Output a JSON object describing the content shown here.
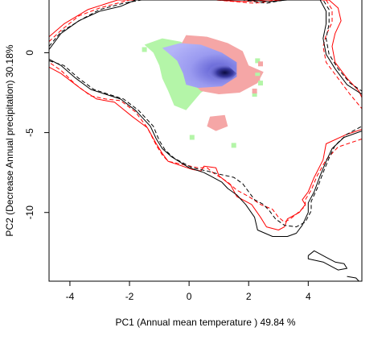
{
  "chart_data": {
    "type": "scatter",
    "title": "",
    "xlabel": "PC1 (Annual mean temperature ) 49.84 %",
    "ylabel": "PC2 (Decrease Annual precipitation) 30.18%",
    "xlim": [
      -4.7,
      5.8
    ],
    "ylim": [
      -14.3,
      3.3
    ],
    "x_ticks": [
      -4,
      -2,
      0,
      2,
      4
    ],
    "y_ticks": [
      0,
      -5,
      -10
    ],
    "x_tick_labels": [
      "-4",
      "-2",
      "0",
      "2",
      "4"
    ],
    "y_tick_labels": [
      "0",
      "-5",
      "-10"
    ],
    "grid": false,
    "legend": "none",
    "colors": {
      "species_a_envelope": "#ff0000",
      "species_b_envelope": "#000000",
      "overlap_density_high": "#0a0a40",
      "overlap": "#a0a0f5",
      "species_a_only": "#f5a6a6",
      "species_b_only": "#b4f5a8"
    },
    "series": [
      {
        "style": "red-solid",
        "points": [
          [
            -4.7,
            1.0
          ],
          [
            -4.2,
            1.8
          ],
          [
            -3.4,
            2.7
          ],
          [
            -2.4,
            3.3
          ],
          [
            0.9,
            3.3
          ],
          [
            1.8,
            3.2
          ],
          [
            2.6,
            3.3
          ],
          [
            4.7,
            3.3
          ],
          [
            5.0,
            2.8
          ],
          [
            5.1,
            2.0
          ],
          [
            4.9,
            1.2
          ],
          [
            4.8,
            0.4
          ],
          [
            4.9,
            -0.6
          ],
          [
            5.3,
            -1.6
          ],
          [
            5.7,
            -2.4
          ],
          [
            5.8,
            -2.8
          ],
          [
            5.8,
            -4.8
          ],
          [
            5.3,
            -5.1
          ],
          [
            4.6,
            -5.7
          ],
          [
            4.5,
            -6.7
          ],
          [
            4.2,
            -7.8
          ],
          [
            4.0,
            -8.7
          ],
          [
            3.8,
            -9.2
          ],
          [
            3.9,
            -9.5
          ],
          [
            3.7,
            -10.0
          ],
          [
            3.3,
            -10.4
          ],
          [
            3.2,
            -10.9
          ],
          [
            3.0,
            -11.1
          ],
          [
            2.6,
            -10.9
          ],
          [
            2.4,
            -10.3
          ],
          [
            2.1,
            -9.5
          ],
          [
            1.6,
            -9.0
          ],
          [
            1.4,
            -8.3
          ],
          [
            1.0,
            -7.7
          ],
          [
            0.9,
            -7.2
          ],
          [
            0.5,
            -7.1
          ],
          [
            0.4,
            -7.4
          ],
          [
            0.1,
            -7.3
          ],
          [
            -0.7,
            -6.8
          ],
          [
            -0.9,
            -6.3
          ],
          [
            -1.1,
            -5.7
          ],
          [
            -1.4,
            -4.7
          ],
          [
            -1.9,
            -4.0
          ],
          [
            -2.5,
            -3.1
          ],
          [
            -3.1,
            -2.9
          ],
          [
            -3.6,
            -2.3
          ],
          [
            -4.3,
            -1.3
          ],
          [
            -4.7,
            -0.9
          ]
        ]
      },
      {
        "style": "red-dashed",
        "points": [
          [
            -4.7,
            0.7
          ],
          [
            -4.3,
            1.4
          ],
          [
            -3.7,
            2.3
          ],
          [
            -3.0,
            2.8
          ],
          [
            -2.0,
            3.3
          ],
          [
            0.9,
            3.3
          ],
          [
            2.2,
            3.1
          ],
          [
            3.0,
            3.3
          ],
          [
            4.6,
            3.3
          ],
          [
            4.8,
            2.7
          ],
          [
            4.8,
            1.9
          ],
          [
            4.6,
            1.1
          ],
          [
            4.5,
            0.4
          ],
          [
            4.6,
            -0.6
          ],
          [
            5.0,
            -1.6
          ],
          [
            5.4,
            -2.6
          ],
          [
            5.8,
            -3.5
          ],
          [
            5.8,
            -5.4
          ],
          [
            5.0,
            -5.9
          ],
          [
            4.6,
            -6.7
          ],
          [
            4.3,
            -7.7
          ],
          [
            4.1,
            -8.6
          ],
          [
            3.9,
            -9.2
          ],
          [
            3.9,
            -9.6
          ],
          [
            3.6,
            -10.1
          ],
          [
            3.4,
            -10.4
          ],
          [
            3.2,
            -10.6
          ],
          [
            3.0,
            -10.3
          ],
          [
            2.8,
            -9.8
          ],
          [
            2.4,
            -9.5
          ],
          [
            2.0,
            -9.0
          ],
          [
            1.6,
            -8.6
          ],
          [
            1.3,
            -8.1
          ],
          [
            0.8,
            -7.5
          ],
          [
            0.6,
            -7.2
          ],
          [
            0.3,
            -7.2
          ],
          [
            -0.7,
            -6.8
          ],
          [
            -0.9,
            -6.4
          ],
          [
            -1.1,
            -5.8
          ],
          [
            -1.4,
            -4.7
          ],
          [
            -1.8,
            -3.7
          ],
          [
            -2.3,
            -3.0
          ],
          [
            -2.8,
            -2.9
          ],
          [
            -3.3,
            -2.7
          ],
          [
            -3.8,
            -2.0
          ],
          [
            -4.3,
            -1.1
          ],
          [
            -4.7,
            -0.6
          ]
        ]
      },
      {
        "style": "black-solid",
        "points": [
          [
            -4.7,
            0.2
          ],
          [
            -4.3,
            1.2
          ],
          [
            -3.7,
            2.0
          ],
          [
            -3.0,
            2.6
          ],
          [
            -2.3,
            2.9
          ],
          [
            -1.8,
            3.3
          ],
          [
            2.0,
            3.3
          ],
          [
            2.7,
            3.2
          ],
          [
            3.3,
            3.3
          ],
          [
            4.4,
            3.3
          ],
          [
            4.6,
            2.6
          ],
          [
            4.6,
            1.8
          ],
          [
            4.5,
            0.9
          ],
          [
            4.6,
            -0.1
          ],
          [
            4.9,
            -1.0
          ],
          [
            5.3,
            -2.0
          ],
          [
            5.8,
            -2.6
          ],
          [
            5.8,
            -4.9
          ],
          [
            5.2,
            -5.3
          ],
          [
            4.8,
            -6.0
          ],
          [
            4.6,
            -6.8
          ],
          [
            4.4,
            -7.7
          ],
          [
            4.2,
            -8.7
          ],
          [
            4.0,
            -9.4
          ],
          [
            4.0,
            -10.0
          ],
          [
            3.8,
            -10.8
          ],
          [
            3.6,
            -11.3
          ],
          [
            3.3,
            -11.5
          ],
          [
            2.8,
            -11.5
          ],
          [
            2.3,
            -11.1
          ],
          [
            2.2,
            -10.3
          ],
          [
            1.9,
            -9.5
          ],
          [
            1.6,
            -8.9
          ],
          [
            1.3,
            -8.5
          ],
          [
            1.1,
            -8.1
          ],
          [
            0.7,
            -7.7
          ],
          [
            0.5,
            -7.5
          ],
          [
            0.0,
            -7.2
          ],
          [
            -0.6,
            -6.5
          ],
          [
            -0.9,
            -6.0
          ],
          [
            -1.1,
            -5.4
          ],
          [
            -1.3,
            -4.6
          ],
          [
            -1.8,
            -3.6
          ],
          [
            -2.3,
            -2.9
          ],
          [
            -2.8,
            -2.6
          ],
          [
            -3.3,
            -2.3
          ],
          [
            -3.8,
            -1.6
          ],
          [
            -4.3,
            -0.8
          ],
          [
            -4.7,
            -0.4
          ]
        ]
      },
      {
        "style": "black-dashed",
        "points": [
          [
            -4.7,
            0.4
          ],
          [
            -4.3,
            1.3
          ],
          [
            -3.6,
            2.1
          ],
          [
            -3.0,
            2.7
          ],
          [
            -2.2,
            3.1
          ],
          [
            -1.6,
            3.3
          ],
          [
            1.8,
            3.3
          ],
          [
            2.6,
            3.1
          ],
          [
            3.2,
            3.3
          ],
          [
            4.5,
            3.3
          ],
          [
            4.7,
            2.7
          ],
          [
            4.7,
            1.8
          ],
          [
            4.6,
            0.9
          ],
          [
            4.7,
            -0.1
          ],
          [
            5.0,
            -1.0
          ],
          [
            5.4,
            -1.9
          ],
          [
            5.8,
            -2.4
          ],
          [
            5.8,
            -4.6
          ],
          [
            5.3,
            -5.1
          ],
          [
            4.9,
            -5.8
          ],
          [
            4.7,
            -6.6
          ],
          [
            4.5,
            -7.5
          ],
          [
            4.3,
            -8.5
          ],
          [
            4.1,
            -9.3
          ],
          [
            4.1,
            -9.9
          ],
          [
            3.9,
            -10.6
          ],
          [
            3.6,
            -10.9
          ],
          [
            3.2,
            -10.8
          ],
          [
            2.9,
            -10.4
          ],
          [
            2.7,
            -9.9
          ],
          [
            2.5,
            -9.5
          ],
          [
            2.2,
            -9.2
          ],
          [
            2.0,
            -8.7
          ],
          [
            1.8,
            -8.2
          ],
          [
            1.5,
            -7.8
          ],
          [
            1.0,
            -7.6
          ],
          [
            0.6,
            -7.4
          ],
          [
            0.1,
            -7.2
          ],
          [
            -0.5,
            -6.6
          ],
          [
            -0.8,
            -6.1
          ],
          [
            -1.0,
            -5.5
          ],
          [
            -1.2,
            -4.6
          ],
          [
            -1.7,
            -3.6
          ],
          [
            -2.2,
            -2.9
          ],
          [
            -2.7,
            -2.6
          ],
          [
            -3.2,
            -2.3
          ],
          [
            -3.7,
            -1.6
          ],
          [
            -4.2,
            -0.8
          ],
          [
            -4.7,
            -0.5
          ]
        ]
      },
      {
        "style": "black-solid",
        "points": [
          [
            4.0,
            -12.7
          ],
          [
            4.2,
            -12.4
          ],
          [
            4.6,
            -12.8
          ],
          [
            4.9,
            -13.1
          ],
          [
            5.2,
            -13.2
          ],
          [
            5.3,
            -13.5
          ],
          [
            5.0,
            -13.6
          ],
          [
            4.5,
            -13.1
          ],
          [
            4.0,
            -12.9
          ],
          [
            4.0,
            -12.7
          ]
        ]
      },
      {
        "style": "black-solid",
        "points": [
          [
            5.3,
            -14.0
          ],
          [
            5.6,
            -14.1
          ],
          [
            5.7,
            -14.3
          ]
        ]
      }
    ],
    "density_regions": [
      {
        "fill": "species_b_only",
        "points": [
          [
            -1.5,
            0.5
          ],
          [
            -0.9,
            0.9
          ],
          [
            -0.3,
            0.7
          ],
          [
            0.4,
            0.2
          ],
          [
            0.9,
            -0.4
          ],
          [
            1.2,
            -1.3
          ],
          [
            0.9,
            -1.9
          ],
          [
            0.4,
            -2.5
          ],
          [
            -0.1,
            -3.6
          ],
          [
            -0.5,
            -3.3
          ],
          [
            -0.7,
            -2.4
          ],
          [
            -0.9,
            -1.6
          ],
          [
            -1.0,
            -0.8
          ],
          [
            -1.2,
            0.0
          ],
          [
            -1.5,
            0.5
          ]
        ]
      },
      {
        "fill": "species_a_only",
        "points": [
          [
            -0.1,
            1.1
          ],
          [
            0.6,
            1.0
          ],
          [
            1.3,
            0.6
          ],
          [
            1.8,
            0.1
          ],
          [
            2.0,
            -0.8
          ],
          [
            2.5,
            -1.2
          ],
          [
            2.3,
            -1.9
          ],
          [
            1.7,
            -2.5
          ],
          [
            1.0,
            -2.6
          ],
          [
            0.4,
            -2.4
          ],
          [
            0.0,
            -1.7
          ],
          [
            -0.2,
            -0.6
          ],
          [
            -0.3,
            0.4
          ],
          [
            -0.1,
            1.1
          ]
        ]
      },
      {
        "fill": "species_a_only",
        "points": [
          [
            0.7,
            -4.0
          ],
          [
            1.2,
            -3.9
          ],
          [
            1.3,
            -4.6
          ],
          [
            0.9,
            -4.9
          ],
          [
            0.6,
            -4.6
          ],
          [
            0.7,
            -4.0
          ]
        ]
      },
      {
        "fill": "overlap",
        "points": [
          [
            -0.9,
            0.3
          ],
          [
            -0.3,
            0.6
          ],
          [
            0.4,
            0.5
          ],
          [
            1.1,
            0.0
          ],
          [
            1.6,
            -0.6
          ],
          [
            1.6,
            -1.5
          ],
          [
            1.1,
            -2.1
          ],
          [
            0.3,
            -2.2
          ],
          [
            -0.1,
            -2.0
          ],
          [
            -0.2,
            -1.3
          ],
          [
            -0.4,
            -0.5
          ],
          [
            -0.9,
            0.3
          ]
        ]
      },
      {
        "fill": "overlap_density_high",
        "points": [
          [
            0.8,
            -0.7
          ],
          [
            1.3,
            -0.8
          ],
          [
            1.6,
            -1.3
          ],
          [
            1.4,
            -1.7
          ],
          [
            0.9,
            -1.7
          ],
          [
            0.6,
            -1.3
          ],
          [
            0.8,
            -0.7
          ]
        ]
      }
    ],
    "scatter_specks": [
      {
        "fill": "species_b_only",
        "points": [
          [
            -1.5,
            0.2
          ],
          [
            0.1,
            -5.3
          ],
          [
            1.5,
            -5.8
          ],
          [
            2.3,
            -1.4
          ],
          [
            2.3,
            -0.5
          ],
          [
            2.2,
            -2.6
          ],
          [
            2.4,
            -1.9
          ]
        ]
      },
      {
        "fill": "species_a_only",
        "points": [
          [
            2.3,
            -1.6
          ],
          [
            2.2,
            -2.4
          ],
          [
            2.4,
            -0.7
          ]
        ]
      }
    ]
  }
}
